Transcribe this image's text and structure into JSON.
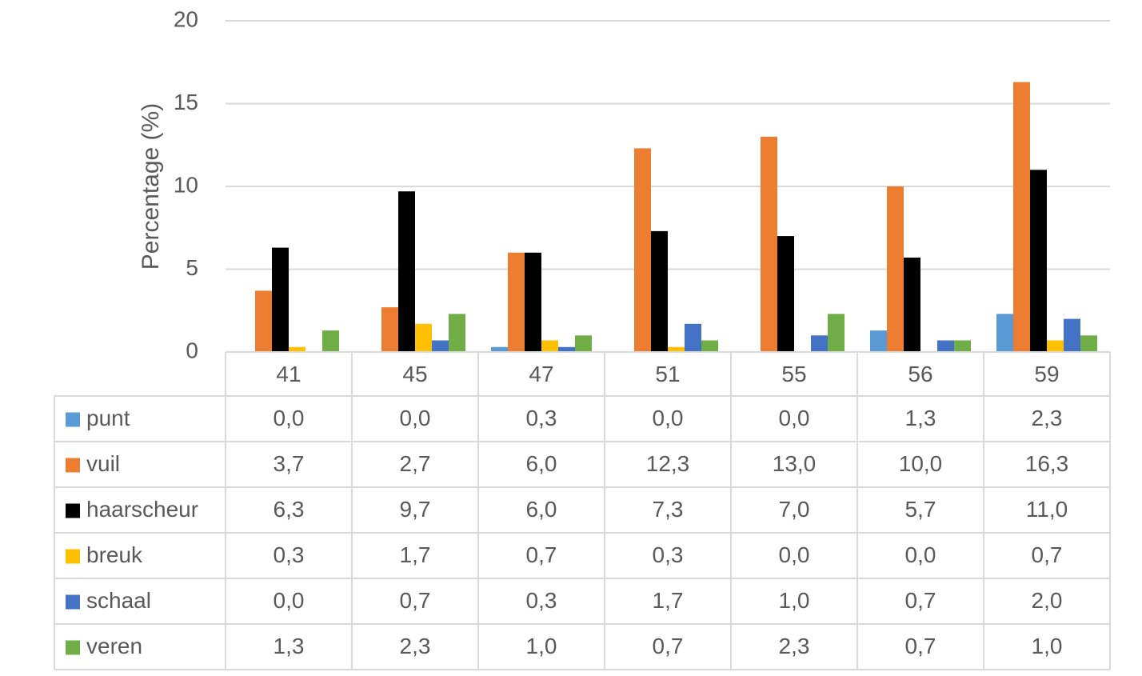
{
  "chart_data": {
    "type": "bar",
    "title": "",
    "xlabel": "",
    "ylabel": "Percentage (%)",
    "ylim": [
      0,
      20
    ],
    "yticks": [
      "0",
      "5",
      "10",
      "15",
      "20"
    ],
    "grid": true,
    "legend": "data-table",
    "categories": [
      "41",
      "45",
      "47",
      "51",
      "55",
      "56",
      "59"
    ],
    "series": [
      {
        "name": "punt",
        "color": "#5b9bd5",
        "values": [
          0.0,
          0.0,
          0.3,
          0.0,
          0.0,
          1.3,
          2.3
        ],
        "labels": [
          "0,0",
          "0,0",
          "0,3",
          "0,0",
          "0,0",
          "1,3",
          "2,3"
        ]
      },
      {
        "name": "vuil",
        "color": "#ed7d31",
        "values": [
          3.7,
          2.7,
          6.0,
          12.3,
          13.0,
          10.0,
          16.3
        ],
        "labels": [
          "3,7",
          "2,7",
          "6,0",
          "12,3",
          "13,0",
          "10,0",
          "16,3"
        ]
      },
      {
        "name": "haarscheur",
        "color": "#000000",
        "values": [
          6.3,
          9.7,
          6.0,
          7.3,
          7.0,
          5.7,
          11.0
        ],
        "labels": [
          "6,3",
          "9,7",
          "6,0",
          "7,3",
          "7,0",
          "5,7",
          "11,0"
        ]
      },
      {
        "name": "breuk",
        "color": "#ffc000",
        "values": [
          0.3,
          1.7,
          0.7,
          0.3,
          0.0,
          0.0,
          0.7
        ],
        "labels": [
          "0,3",
          "1,7",
          "0,7",
          "0,3",
          "0,0",
          "0,0",
          "0,7"
        ]
      },
      {
        "name": "schaal",
        "color": "#4472c4",
        "values": [
          0.0,
          0.7,
          0.3,
          1.7,
          1.0,
          0.7,
          2.0
        ],
        "labels": [
          "0,0",
          "0,7",
          "0,3",
          "1,7",
          "1,0",
          "0,7",
          "2,0"
        ]
      },
      {
        "name": "veren",
        "color": "#70ad47",
        "values": [
          1.3,
          2.3,
          1.0,
          0.7,
          2.3,
          0.7,
          1.0
        ],
        "labels": [
          "1,3",
          "2,3",
          "1,0",
          "0,7",
          "2,3",
          "0,7",
          "1,0"
        ]
      }
    ]
  }
}
